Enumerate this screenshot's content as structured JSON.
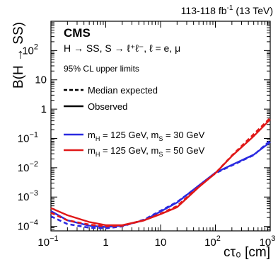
{
  "chart_data": {
    "type": "line",
    "lumi_text": "113-118 fb",
    "lumi_sup": "-1",
    "lumi_rest": " (13 TeV)",
    "experiment": "CMS",
    "process": "H → SS, S → ℓ⁺ℓ⁻, ℓ = e, μ",
    "limit_label": "95% CL upper limits",
    "ylabel": "B(H → SS)",
    "xlabel": "cτ₀ [cm]",
    "x_scale": "log",
    "y_scale": "log",
    "xlim": [
      0.1,
      1000
    ],
    "ylim": [
      7e-05,
      1000
    ],
    "x_ticks": [
      {
        "value": 0.1,
        "base": "10",
        "exp": "−1"
      },
      {
        "value": 1,
        "base": "1",
        "exp": ""
      },
      {
        "value": 10,
        "base": "10",
        "exp": ""
      },
      {
        "value": 100,
        "base": "10",
        "exp": "2"
      },
      {
        "value": 1000,
        "base": "10",
        "exp": "3"
      }
    ],
    "y_ticks": [
      {
        "value": 0.0001,
        "base": "10",
        "exp": "−4"
      },
      {
        "value": 0.001,
        "base": "10",
        "exp": "−3"
      },
      {
        "value": 0.01,
        "base": "10",
        "exp": "−2"
      },
      {
        "value": 0.1,
        "base": "10",
        "exp": "−1"
      },
      {
        "value": 1,
        "base": "1",
        "exp": ""
      },
      {
        "value": 10,
        "base": "10",
        "exp": ""
      },
      {
        "value": 100,
        "base": "10",
        "exp": "2"
      }
    ],
    "style_legend": [
      {
        "label": "Median expected",
        "dash": true
      },
      {
        "label": "Observed",
        "dash": false
      }
    ],
    "series": [
      {
        "name": "mH = 125 GeV, mS = 30 GeV",
        "color": "#2a2ae0",
        "observed": {
          "x": [
            0.1,
            0.2,
            0.5,
            1,
            2,
            5,
            10,
            20,
            50,
            100,
            200,
            500,
            1000
          ],
          "y": [
            0.00033,
            0.00016,
            0.000105,
            9.5e-05,
            0.000105,
            0.00016,
            0.00032,
            0.00065,
            0.0025,
            0.0068,
            0.0125,
            0.028,
            0.075
          ]
        },
        "expected": {
          "x": [
            0.1,
            0.2,
            0.5,
            1,
            2,
            5,
            10,
            20,
            50,
            100,
            200,
            500,
            1000
          ],
          "y": [
            0.00022,
            0.00012,
            9e-05,
            8.5e-05,
            0.0001,
            0.00017,
            0.00034,
            0.00068,
            0.0024,
            0.0065,
            0.012,
            0.027,
            0.085
          ]
        }
      },
      {
        "name": "mH = 125 GeV, mS = 50 GeV",
        "color": "#e01818",
        "observed": {
          "x": [
            0.1,
            0.2,
            0.5,
            1,
            2,
            5,
            10,
            20,
            50,
            100,
            200,
            500,
            1000
          ],
          "y": [
            0.00042,
            0.00024,
            0.00014,
            0.00011,
            0.00011,
            0.00016,
            0.00026,
            0.00045,
            0.0022,
            0.0065,
            0.025,
            0.12,
            0.45
          ]
        },
        "expected": {
          "x": [
            0.1,
            0.2,
            0.5,
            1,
            2,
            5,
            10,
            20,
            50,
            100,
            200,
            500,
            1000
          ],
          "y": [
            0.00029,
            0.00016,
            0.000115,
            0.0001,
            0.000105,
            0.00016,
            0.00027,
            0.00049,
            0.0023,
            0.0065,
            0.026,
            0.14,
            0.5
          ]
        }
      }
    ],
    "grid": false,
    "legend_position": "bottom-left"
  }
}
